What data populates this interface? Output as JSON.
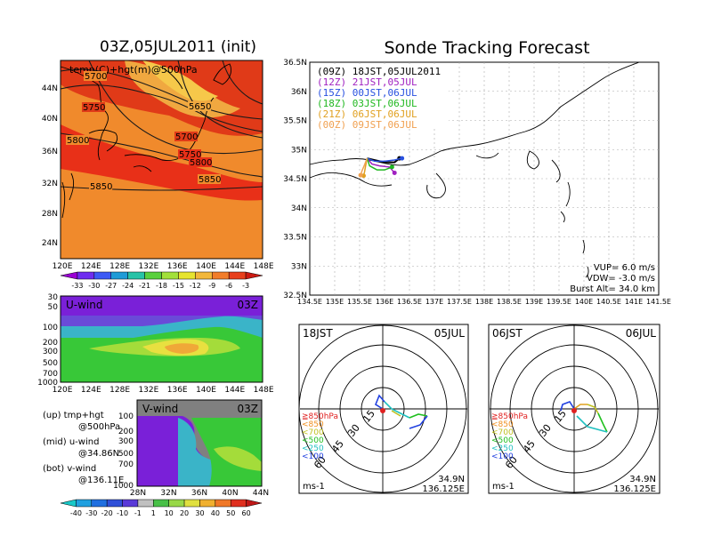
{
  "titles": {
    "init": "03Z,05JUL2011 (init)",
    "main": "Sonde Tracking Forecast"
  },
  "map500": {
    "label": "temp(C)+hgt(m)@500hPa",
    "lat_ticks": [
      "44N",
      "40N",
      "36N",
      "32N",
      "28N",
      "24N"
    ],
    "lon_ticks": [
      "120E",
      "124E",
      "128E",
      "132E",
      "136E",
      "140E",
      "144E",
      "148E"
    ],
    "contours": [
      {
        "label": "5700"
      },
      {
        "label": "5750"
      },
      {
        "label": "5650"
      },
      {
        "label": "5700"
      },
      {
        "label": "5800"
      },
      {
        "label": "5750"
      },
      {
        "label": "5800"
      },
      {
        "label": "5850"
      },
      {
        "label": "5850"
      }
    ],
    "colorbar": [
      "-33",
      "-30",
      "-27",
      "-24",
      "-21",
      "-18",
      "-15",
      "-12",
      "-9",
      "-6",
      "-3"
    ],
    "colorbar_colors": [
      "#9b00d4",
      "#6e2cf0",
      "#3c5af5",
      "#1e9bd7",
      "#27c3a7",
      "#59d03e",
      "#a2e03a",
      "#e6e42e",
      "#f2b73a",
      "#f27d2a",
      "#e8401c",
      "#cc1a12"
    ]
  },
  "uwind": {
    "label": "U-wind",
    "time": "03Z",
    "p_ticks": [
      "30",
      "50",
      "100",
      "200",
      "300",
      "500",
      "700",
      "1000"
    ],
    "lon_ticks": [
      "120E",
      "124E",
      "128E",
      "132E",
      "136E",
      "140E",
      "144E",
      "148E"
    ]
  },
  "vwind": {
    "label": "V-wind",
    "time": "03Z",
    "p_ticks": [
      "100",
      "200",
      "300",
      "500",
      "700",
      "1000"
    ],
    "lat_ticks": [
      "28N",
      "32N",
      "36N",
      "40N",
      "44N"
    ],
    "colorbar": [
      "-40",
      "-30",
      "-20",
      "-10",
      "-1",
      "1",
      "10",
      "20",
      "30",
      "40",
      "50",
      "60"
    ],
    "colorbar_colors": [
      "#18c8c8",
      "#20a0e0",
      "#2070e0",
      "#3050d8",
      "#5a3ad8",
      "#c0c0c0",
      "#48c048",
      "#98d848",
      "#e0e040",
      "#f0b030",
      "#f07828",
      "#e03020",
      "#c01818"
    ]
  },
  "legend_text": [
    "(up)  tmp+hgt",
    "@500hPa",
    "(mid)  u-wind",
    "@34.86N",
    "(bot)  v-wind",
    "@136.11E"
  ],
  "track_map": {
    "lat_ticks": [
      "36.5N",
      "36N",
      "35.5N",
      "35N",
      "34.5N",
      "34N",
      "33.5N",
      "33N",
      "32.5N"
    ],
    "lon_ticks": [
      "134.5E",
      "135E",
      "135.5E",
      "136E",
      "136.5E",
      "137E",
      "137.5E",
      "138E",
      "138.5E",
      "139E",
      "139.5E",
      "140E",
      "140.5E",
      "141E",
      "141.5E"
    ],
    "header": "(09Z)  18JST,05JUL2011",
    "legend": [
      {
        "text": "(12Z)  21JST,05JUL",
        "color": "#a020c0"
      },
      {
        "text": "(15Z)  00JST,06JUL",
        "color": "#2850e0"
      },
      {
        "text": "(18Z)  03JST,06JUL",
        "color": "#20b820"
      },
      {
        "text": "(21Z)  06JST,06JUL",
        "color": "#e0a020"
      },
      {
        "text": "(00Z)  09JST,06JUL",
        "color": "#f0a050"
      }
    ],
    "params": [
      "VUP=  6.0  m/s",
      "VDW= -3.0  m/s",
      "Burst Alt=  34.0  km"
    ]
  },
  "polar_left": {
    "time": "18JST",
    "date": "05JUL",
    "ring_labels": [
      "15",
      "30",
      "45",
      "60"
    ],
    "levels": [
      {
        "text": "≧850hPa",
        "color": "#e02020"
      },
      {
        "text": "<850",
        "color": "#f09020"
      },
      {
        "text": "<700",
        "color": "#c0c020"
      },
      {
        "text": "<500",
        "color": "#20c020"
      },
      {
        "text": "<250",
        "color": "#20c0c0"
      },
      {
        "text": "<100",
        "color": "#2040e0"
      }
    ],
    "unit": "ms-1",
    "pos1": "34.9N",
    "pos2": "136.125E"
  },
  "polar_right": {
    "time": "06JST",
    "date": "06JUL",
    "ring_labels": [
      "15",
      "30",
      "45",
      "60"
    ],
    "levels": [
      {
        "text": "≧850hPa",
        "color": "#e02020"
      },
      {
        "text": "<850",
        "color": "#f09020"
      },
      {
        "text": "<700",
        "color": "#c0c020"
      },
      {
        "text": "<500",
        "color": "#20c020"
      },
      {
        "text": "<250",
        "color": "#20c0c0"
      },
      {
        "text": "<100",
        "color": "#2040e0"
      }
    ],
    "unit": "ms-1",
    "pos1": "34.9N",
    "pos2": "136.125E"
  },
  "chart_data": [
    {
      "type": "heatmap",
      "title": "03Z,05JUL2011 (init)",
      "annotation": "temp(C)+hgt(m)@500hPa",
      "xlim": [
        "120E",
        "148E"
      ],
      "ylim": [
        "22N",
        "46N"
      ],
      "contour_values": [
        5650,
        5700,
        5750,
        5800,
        5850
      ],
      "colorbar": [
        -33,
        -30,
        -27,
        -24,
        -21,
        -18,
        -15,
        -12,
        -9,
        -6,
        -3
      ]
    },
    {
      "type": "heatmap",
      "annotation": "U-wind",
      "time": "03Z",
      "yticks": [
        30,
        50,
        100,
        200,
        300,
        500,
        700,
        1000
      ]
    },
    {
      "type": "heatmap",
      "annotation": "V-wind",
      "time": "03Z",
      "yticks": [
        100,
        200,
        300,
        500,
        700,
        1000
      ],
      "colorbar": [
        -40,
        -30,
        -20,
        -10,
        -1,
        1,
        10,
        20,
        30,
        40,
        50,
        60
      ]
    },
    {
      "type": "line",
      "title": "Sonde Tracking Forecast",
      "xlim": [
        134.5,
        141.5
      ],
      "ylim": [
        32.5,
        36.5
      ],
      "series": [
        {
          "name": "(09Z) 18JST,05JUL2011",
          "x": [
            135.65,
            135.8,
            136.0,
            136.2,
            136.3
          ],
          "y": [
            34.85,
            34.82,
            34.78,
            34.78,
            34.85
          ]
        },
        {
          "name": "(12Z) 21JST,05JUL",
          "x": [
            135.65,
            135.75,
            135.9,
            136.1,
            136.2
          ],
          "y": [
            34.85,
            34.75,
            34.72,
            34.7,
            34.6
          ]
        },
        {
          "name": "(15Z) 00JST,06JUL",
          "x": [
            135.65,
            135.8,
            136.0,
            136.2,
            136.35
          ],
          "y": [
            34.85,
            34.8,
            34.8,
            34.82,
            34.85
          ]
        },
        {
          "name": "(18Z) 03JST,06JUL",
          "x": [
            135.65,
            135.7,
            135.85,
            136.0,
            136.15
          ],
          "y": [
            34.85,
            34.72,
            34.65,
            34.65,
            34.7
          ]
        },
        {
          "name": "(21Z) 06JST,06JUL",
          "x": [
            135.65,
            135.62,
            135.6,
            135.58
          ],
          "y": [
            34.85,
            34.72,
            34.62,
            34.55
          ]
        },
        {
          "name": "(00Z) 09JST,06JUL",
          "x": [
            135.65,
            135.6,
            135.55,
            135.52
          ],
          "y": [
            34.85,
            34.74,
            34.64,
            34.56
          ]
        }
      ]
    },
    {
      "type": "scatter",
      "time": "18JST",
      "date": "05JUL",
      "rings": [
        15,
        30,
        45,
        60
      ]
    },
    {
      "type": "scatter",
      "time": "06JST",
      "date": "06JUL",
      "rings": [
        15,
        30,
        45,
        60
      ]
    }
  ]
}
